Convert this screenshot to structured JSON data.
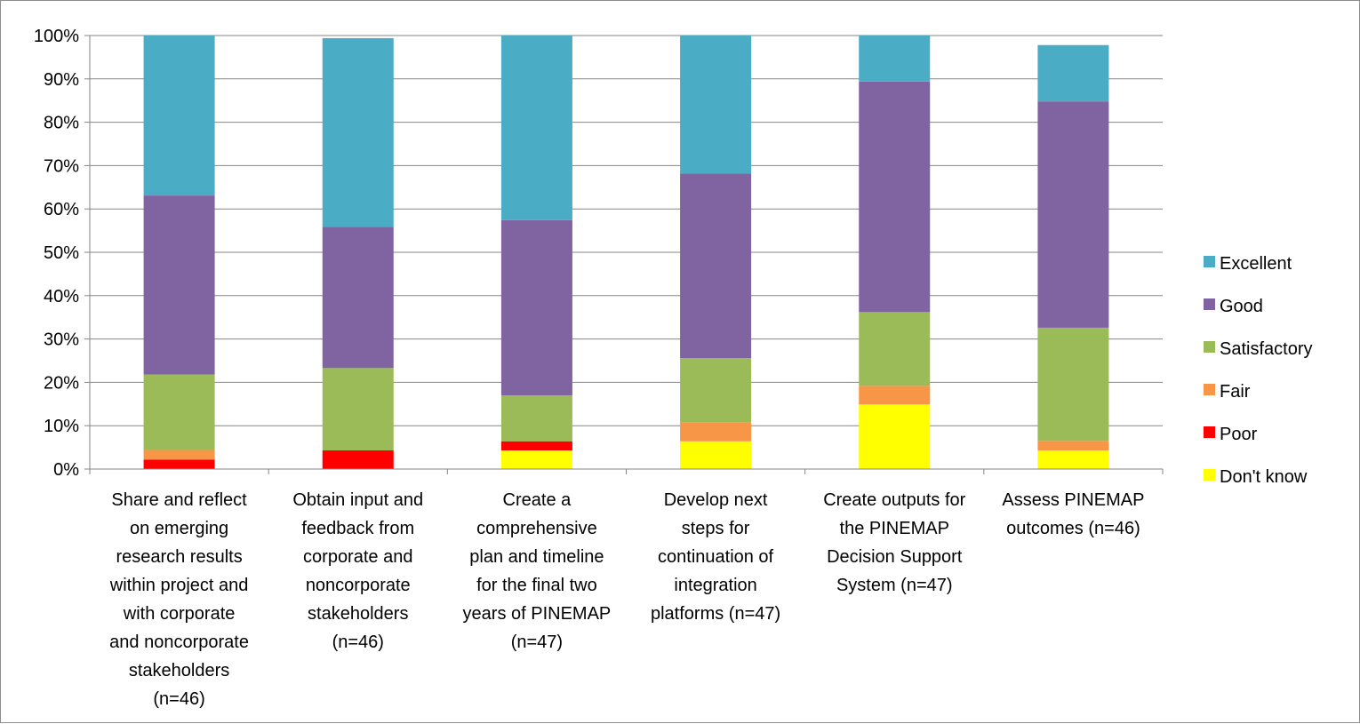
{
  "chart_data": {
    "type": "bar",
    "stacked": true,
    "title": "",
    "xlabel": "",
    "ylabel": "",
    "ylim": [
      0,
      1
    ],
    "y_ticks": [
      "0%",
      "10%",
      "20%",
      "30%",
      "40%",
      "50%",
      "60%",
      "70%",
      "80%",
      "90%",
      "100%"
    ],
    "grid": true,
    "legend_position": "right",
    "categories": [
      [
        "Share and reflect",
        "on emerging",
        "research results",
        "within project and",
        "with corporate",
        "and noncorporate",
        "stakeholders",
        "(n=46)"
      ],
      [
        "Obtain input and",
        "feedback from",
        "corporate and",
        "noncorporate",
        "stakeholders",
        "(n=46)"
      ],
      [
        "Create a",
        "comprehensive",
        "plan and timeline",
        "for the final two",
        "years of PINEMAP",
        "(n=47)"
      ],
      [
        "Develop next",
        "steps for",
        "continuation of",
        "integration",
        "platforms (n=47)"
      ],
      [
        "Create outputs for",
        "the PINEMAP",
        "Decision Support",
        "System (n=47)"
      ],
      [
        "Assess PINEMAP",
        "outcomes (n=46)"
      ]
    ],
    "series": [
      {
        "name": "Don't know",
        "color": "#FFFF00",
        "values": [
          0.0,
          0.0,
          0.043,
          0.064,
          0.149,
          0.043
        ]
      },
      {
        "name": "Poor",
        "color": "#FF0000",
        "values": [
          0.022,
          0.043,
          0.021,
          0.0,
          0.0,
          0.0
        ]
      },
      {
        "name": "Fair",
        "color": "#F79646",
        "values": [
          0.022,
          0.0,
          0.0,
          0.043,
          0.043,
          0.022
        ]
      },
      {
        "name": "Satisfactory",
        "color": "#9BBB59",
        "values": [
          0.174,
          0.19,
          0.106,
          0.149,
          0.17,
          0.261
        ]
      },
      {
        "name": "Good",
        "color": "#8064A2",
        "values": [
          0.413,
          0.326,
          0.404,
          0.426,
          0.532,
          0.522
        ]
      },
      {
        "name": "Excellent",
        "color": "#4BACC6",
        "values": [
          0.369,
          0.435,
          0.426,
          0.318,
          0.106,
          0.13
        ]
      }
    ],
    "legend_order": [
      "Excellent",
      "Good",
      "Satisfactory",
      "Fair",
      "Poor",
      "Don't know"
    ]
  }
}
